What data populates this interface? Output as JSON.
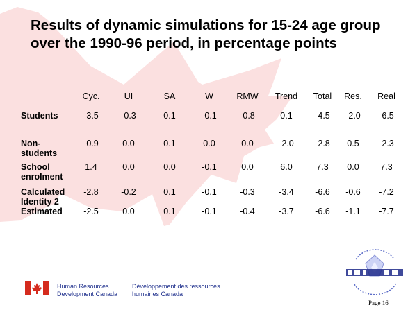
{
  "slide": {
    "title": "Results of dynamic simulations for 15-24 age group over the 1990-96 period, in percentage points",
    "page_label": "Page 16"
  },
  "table": {
    "columns": [
      "Cyc.",
      "UI",
      "SA",
      "W",
      "RMW",
      "Trend",
      "Total",
      "Res.",
      "Real"
    ],
    "rows": [
      {
        "label": "Students",
        "values": [
          "-3.5",
          "-0.3",
          "0.1",
          "-0.1",
          "-0.8",
          "0.1",
          "-4.5",
          "-2.0",
          "-6.5"
        ]
      },
      {
        "label": "Non-students",
        "values": [
          "-0.9",
          "0.0",
          "0.1",
          "0.0",
          "0.0",
          "-2.0",
          "-2.8",
          "0.5",
          "-2.3"
        ]
      },
      {
        "label": "School enrolment",
        "values": [
          "1.4",
          "0.0",
          "0.0",
          "-0.1",
          "0.0",
          "6.0",
          "7.3",
          "0.0",
          "7.3"
        ]
      },
      {
        "label": "Calculated Identity 2",
        "values": [
          "-2.8",
          "-0.2",
          "0.1",
          "-0.1",
          "-0.3",
          "-3.4",
          "-6.6",
          "-0.6",
          "-7.2"
        ]
      },
      {
        "label": "Estimated",
        "values": [
          "-2.5",
          "0.0",
          "0.1",
          "-0.1",
          "-0.4",
          "-3.7",
          "-6.6",
          "-1.1",
          "-7.7"
        ]
      }
    ]
  },
  "footer": {
    "english": "Human Resources Development Canada",
    "french": "Développement des ressources humaines Canada"
  },
  "colors": {
    "background_leaf": "#fbe0e0",
    "footer_text": "#1e2f8c",
    "flag_red": "#d52b1e"
  },
  "icons": {
    "background": "maple-leaf-icon",
    "footer_logo": "canada-flag-icon",
    "emblem": "hrdc-emblem-icon"
  }
}
